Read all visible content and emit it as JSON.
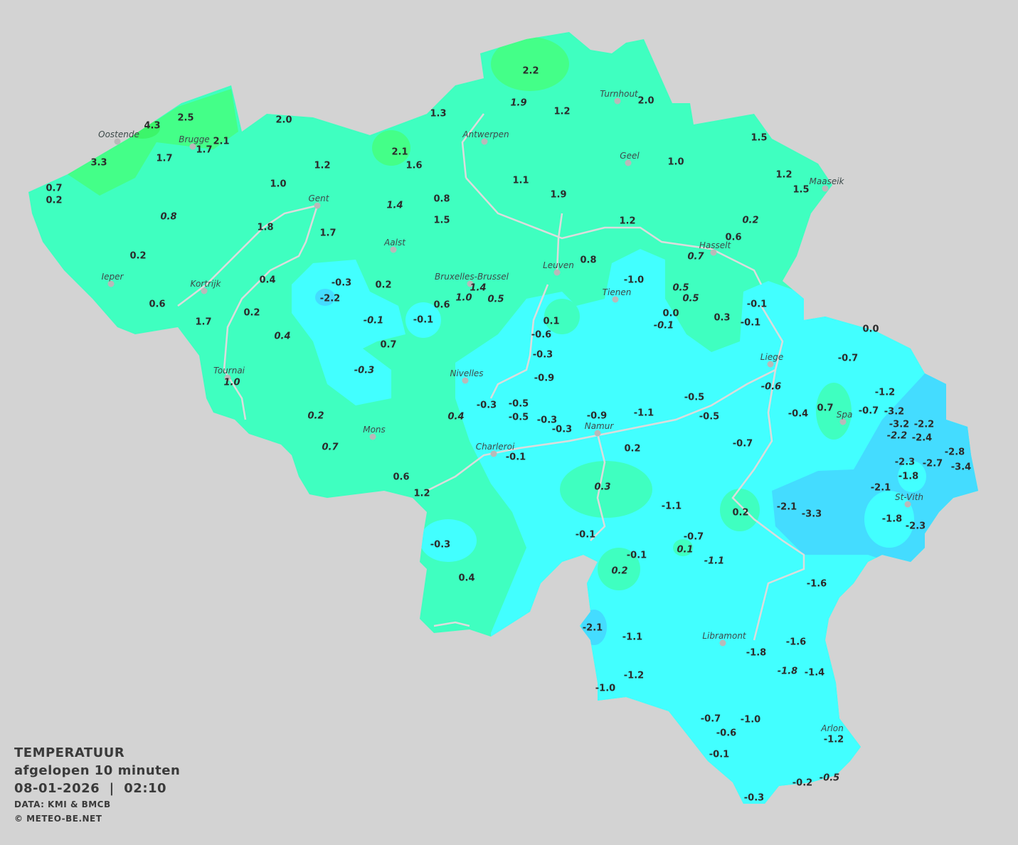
{
  "legend": {
    "title": "TEMPERATUUR",
    "period": "afgelopen 10 minuten",
    "datetime": "08-01-2026  |  02:10",
    "source": "DATA: KMI & BMCB",
    "copyright": "© METEO-BE.NET"
  },
  "colors": {
    "background": "#d3d3d3",
    "zone_0_to_2": "#3fffc0",
    "zone_2_to_4": "#44ff88",
    "zone_4_plus": "#3cf56a",
    "zone_0_to_-2": "#42ffff",
    "zone_-2_to_-4": "#44dcff",
    "rivers": "#dcdcdc"
  },
  "cities": [
    "Oostende",
    "Brugge",
    "Antwerpen",
    "Turnhout",
    "Geel",
    "Maaseik",
    "Gent",
    "Aalst",
    "Hasselt",
    "Leuven",
    "Bruxelles-Brussel",
    "Ieper",
    "Kortrijk",
    "Tienen",
    "Liege",
    "Tournai",
    "Nivelles",
    "Spa",
    "Mons",
    "Namur",
    "Charleroi",
    "St-Vith",
    "Libramont",
    "Arlon"
  ],
  "readings": [
    "2.2",
    "1.9",
    "1.2",
    "2.0",
    "1.3",
    "2.5",
    "4.3",
    "2.1",
    "1.7",
    "2.0",
    "3.3",
    "1.7",
    "2.1",
    "1.6",
    "1.5",
    "1.0",
    "1.2",
    "1.1",
    "1.2",
    "1.5",
    "0.7",
    "0.2",
    "1.0",
    "1.9",
    "0.8",
    "1.4",
    "0.8",
    "1.5",
    "1.2",
    "0.2",
    "1.8",
    "1.7",
    "0.6",
    "0.7",
    "0.2",
    "0.8",
    "-1.0",
    "-0.3",
    "0.4",
    "0.2",
    "1.4",
    "1.0",
    "0.5",
    "0.5",
    "0.5",
    "-2.2",
    "0.6",
    "0.6",
    "-0.1",
    "0.0",
    "-0.1",
    "0.2",
    "-0.1",
    "-0.1",
    "0.1",
    "0.3",
    "-0.1",
    "1.7",
    "0.0",
    "-0.6",
    "0.4",
    "0.7",
    "-0.3",
    "-0.7",
    "-0.3",
    "-0.9",
    "1.0",
    "-0.6",
    "-1.2",
    "-0.5",
    "-0.3",
    "-0.5",
    "0.7",
    "-0.7",
    "-0.4",
    "-3.2",
    "-1.1",
    "-0.5",
    "-0.3",
    "-0.9",
    "-0.5",
    "0.2",
    "0.4",
    "-3.2",
    "-2.2",
    "-0.3",
    "-2.2",
    "-2.4",
    "0.7",
    "-0.7",
    "0.2",
    "-0.1",
    "-2.8",
    "-2.3",
    "-2.7",
    "-3.4",
    "0.6",
    "-1.8",
    "0.3",
    "-2.1",
    "1.2",
    "-2.1",
    "-1.1",
    "-3.3",
    "0.2",
    "-1.8",
    "-2.3",
    "-0.1",
    "-0.7",
    "-0.3",
    "0.1",
    "-0.1",
    "-1.1",
    "0.2",
    "0.4",
    "-1.6",
    "-2.1",
    "-1.1",
    "-1.6",
    "-1.8",
    "-1.8",
    "-1.4",
    "-1.2",
    "-1.0",
    "-0.7",
    "-1.0",
    "-0.6",
    "-1.2",
    "-0.1",
    "-0.2",
    "-0.5",
    "-0.3"
  ]
}
